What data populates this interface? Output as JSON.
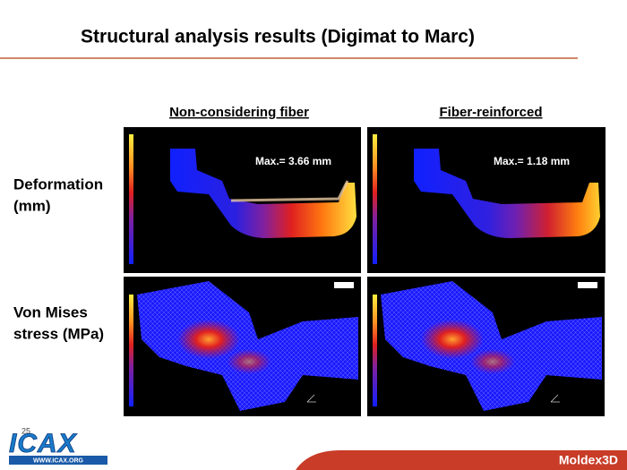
{
  "header": {
    "title": "Structural analysis results (Digimat to Marc)"
  },
  "columns": [
    "Non-considering fiber",
    "Fiber-reinforced"
  ],
  "rows": [
    {
      "label": [
        "Deformation",
        "(mm)"
      ],
      "annotations": [
        "Max.= 3.66 mm",
        "Max.= 1.18 mm"
      ]
    },
    {
      "label": [
        "Von Mises",
        "stress (MPa)"
      ]
    }
  ],
  "footer": {
    "page": "25",
    "logo": "ICAX",
    "logo_url": "WWW.ICAX.ORG",
    "brand": "Moldex3D"
  }
}
